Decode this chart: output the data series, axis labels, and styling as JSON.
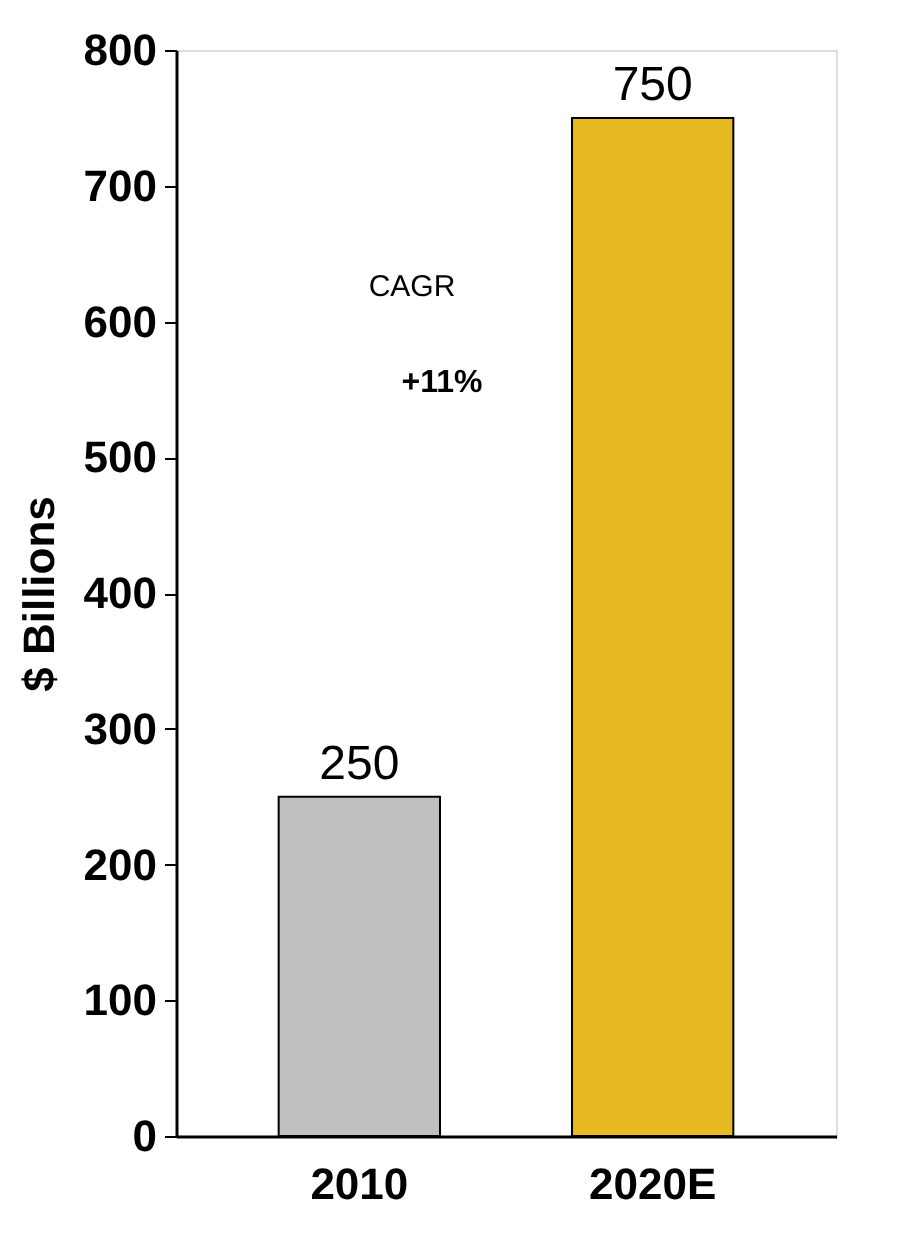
{
  "chart_data": {
    "type": "bar",
    "ylabel": "$ Billions",
    "categories": [
      "2010",
      "2020E"
    ],
    "values": [
      250,
      750
    ],
    "colors": [
      "#c0c0c0",
      "#e6b822"
    ],
    "ylim": [
      0,
      800
    ],
    "yticks": [
      0,
      100,
      200,
      300,
      400,
      500,
      600,
      700,
      800
    ],
    "data_labels": true,
    "grid": false,
    "annotations": [
      "CAGR",
      "+11%"
    ]
  }
}
